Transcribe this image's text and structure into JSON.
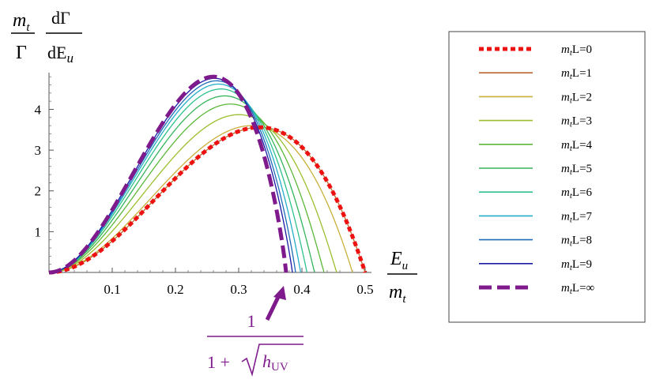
{
  "chart_data": {
    "type": "line",
    "ylabel_parts": {
      "left_num": "m",
      "left_num_sub": "t",
      "left_den": "Γ",
      "right_num": "dΓ",
      "right_den": "dE",
      "right_den_sub": "u"
    },
    "xlabel_parts": {
      "num": "E",
      "num_sub": "u",
      "den": "m",
      "den_sub": "t"
    },
    "xlim": [
      0,
      0.5
    ],
    "ylim": [
      0,
      4.9
    ],
    "x_ticks": [
      "0.1",
      "0.2",
      "0.3",
      "0.4",
      "0.5"
    ],
    "x_tick_values": [
      0.1,
      0.2,
      0.3,
      0.4,
      0.5
    ],
    "y_ticks": [
      "1",
      "2",
      "3",
      "4"
    ],
    "y_tick_values": [
      1,
      2,
      3,
      4
    ],
    "grid": false,
    "legend_position": "right",
    "series": [
      {
        "name_prefix": "m",
        "name_sub": "t",
        "name_suffix": "L=0",
        "L": 0,
        "color": "#ee1111",
        "style": "dotted",
        "peak_x": 0.333,
        "peak_y": 3.56,
        "cutoff": 0.5
      },
      {
        "name_prefix": "m",
        "name_sub": "t",
        "name_suffix": "L=1",
        "L": 1,
        "color": "#b8682e",
        "style": "solid",
        "peak_x": 0.333,
        "peak_y": 3.56,
        "cutoff": 0.5
      },
      {
        "name_prefix": "m",
        "name_sub": "t",
        "name_suffix": "L=2",
        "L": 2,
        "color": "#c8b03a",
        "style": "solid",
        "peak_x": 0.32,
        "peak_y": 3.6,
        "cutoff": 0.48
      },
      {
        "name_prefix": "m",
        "name_sub": "t",
        "name_suffix": "L=3",
        "L": 3,
        "color": "#9cbf2e",
        "style": "solid",
        "peak_x": 0.3,
        "peak_y": 3.87,
        "cutoff": 0.455
      },
      {
        "name_prefix": "m",
        "name_sub": "t",
        "name_suffix": "L=4",
        "L": 4,
        "color": "#5cb83a",
        "style": "solid",
        "peak_x": 0.287,
        "peak_y": 4.13,
        "cutoff": 0.435
      },
      {
        "name_prefix": "m",
        "name_sub": "t",
        "name_suffix": "L=5",
        "L": 5,
        "color": "#34b45a",
        "style": "solid",
        "peak_x": 0.278,
        "peak_y": 4.33,
        "cutoff": 0.42
      },
      {
        "name_prefix": "m",
        "name_sub": "t",
        "name_suffix": "L=6",
        "L": 6,
        "color": "#2ec28c",
        "style": "solid",
        "peak_x": 0.272,
        "peak_y": 4.5,
        "cutoff": 0.408
      },
      {
        "name_prefix": "m",
        "name_sub": "t",
        "name_suffix": "L=7",
        "L": 7,
        "color": "#25aec8",
        "style": "solid",
        "peak_x": 0.268,
        "peak_y": 4.62,
        "cutoff": 0.398
      },
      {
        "name_prefix": "m",
        "name_sub": "t",
        "name_suffix": "L=8",
        "L": 8,
        "color": "#1f6cb8",
        "style": "solid",
        "peak_x": 0.265,
        "peak_y": 4.7,
        "cutoff": 0.39
      },
      {
        "name_prefix": "m",
        "name_sub": "t",
        "name_suffix": "L=9",
        "L": 9,
        "color": "#1a1aa6",
        "style": "solid",
        "peak_x": 0.262,
        "peak_y": 4.76,
        "cutoff": 0.385
      },
      {
        "name_prefix": "m",
        "name_sub": "t",
        "name_suffix": "L=∞",
        "L": "inf",
        "color": "#7e1a8c",
        "style": "dashed",
        "peak_x": 0.26,
        "peak_y": 4.8,
        "cutoff": 0.375
      }
    ],
    "annotation": {
      "numerator": "1",
      "denominator_prefix": "1 +",
      "radicand": "h",
      "radicand_sub": "UV",
      "color": "#7e1a8c",
      "points_to_x": 0.375
    }
  }
}
